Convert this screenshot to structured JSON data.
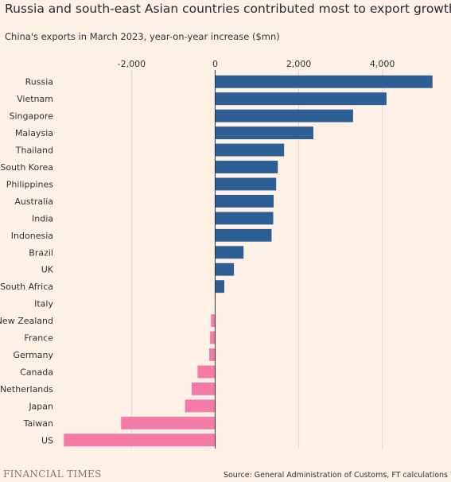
{
  "title": "Russia and south-east Asian countries contributed most to export growth",
  "subtitle": "China's exports in March 2023, year-on-year increase ($mn)",
  "source": "Source: General Administration of Customs, FT calculations",
  "brand": "FINANCIAL TIMES",
  "colors": {
    "positive": "#2d5e94",
    "negative": "#f47ba7",
    "grid": "#e3d8cf",
    "zero_line": "#33302e",
    "background": "#fff1e5"
  },
  "chart_data": {
    "type": "bar",
    "orientation": "horizontal",
    "categories": [
      "Russia",
      "Vietnam",
      "Singapore",
      "Malaysia",
      "Thailand",
      "South Korea",
      "Philippines",
      "Australia",
      "India",
      "Indonesia",
      "Brazil",
      "UK",
      "South Africa",
      "Italy",
      "New Zealand",
      "France",
      "Germany",
      "Canada",
      "Netherlands",
      "Japan",
      "Taiwan",
      "US"
    ],
    "values": [
      5200,
      4100,
      3300,
      2350,
      1650,
      1500,
      1460,
      1400,
      1390,
      1350,
      680,
      450,
      220,
      0,
      -100,
      -120,
      -140,
      -420,
      -560,
      -720,
      -2250,
      -3620
    ],
    "xlim": [
      -3700,
      5300
    ],
    "xticks": [
      -2000,
      0,
      2000,
      4000
    ],
    "xtick_labels": [
      "-2,000",
      "0",
      "2,000",
      "4,000"
    ],
    "grid": true,
    "title": "Russia and south-east Asian countries contributed most to export growth",
    "xlabel": "",
    "ylabel": ""
  }
}
